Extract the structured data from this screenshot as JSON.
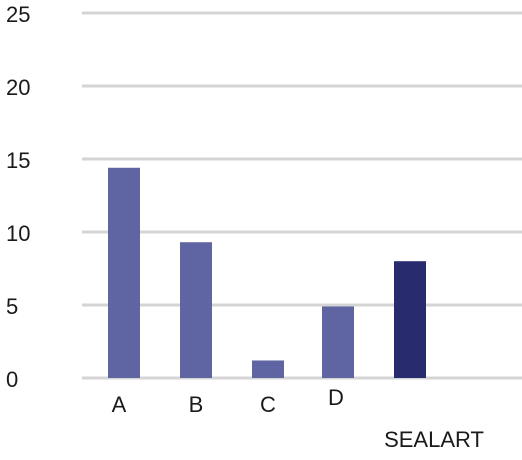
{
  "chart_data": {
    "type": "bar",
    "categories": [
      "A",
      "B",
      "C",
      "D",
      "SEALART"
    ],
    "values": [
      14.4,
      9.3,
      1.2,
      4.9,
      8.0
    ],
    "bar_colors": [
      "#5f64a3",
      "#5f64a3",
      "#5f64a3",
      "#5f64a3",
      "#282c6e"
    ],
    "title": "",
    "xlabel": "",
    "ylabel": "",
    "ylim": [
      0,
      25
    ],
    "y_ticks": [
      0,
      5,
      10,
      15,
      20,
      25
    ],
    "y_tick_labels": [
      "0",
      "5",
      "10",
      "15",
      "20",
      "25"
    ],
    "grid": true,
    "gridline_color": "#d4d4d4",
    "legend": "none"
  }
}
